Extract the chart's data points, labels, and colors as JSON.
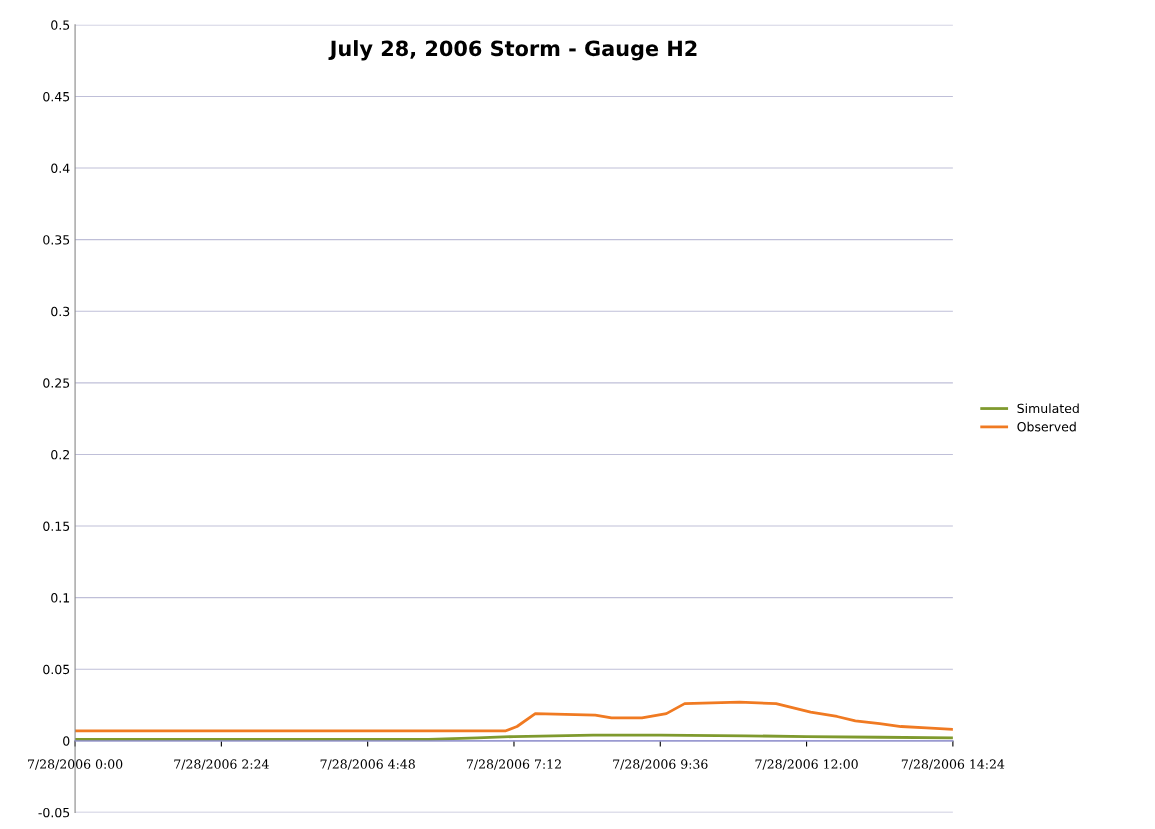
{
  "chart_data": {
    "type": "line",
    "title": "July 28, 2006 Storm - Gauge H2",
    "xlim": [
      "2006-07-28T00:00",
      "2006-07-28T14:24"
    ],
    "xticks": [
      {
        "value": "2006-07-28T00:00",
        "label": "7/28/2006 0:00"
      },
      {
        "value": "2006-07-28T02:24",
        "label": "7/28/2006 2:24"
      },
      {
        "value": "2006-07-28T04:48",
        "label": "7/28/2006 4:48"
      },
      {
        "value": "2006-07-28T07:12",
        "label": "7/28/2006 7:12"
      },
      {
        "value": "2006-07-28T09:36",
        "label": "7/28/2006 9:36"
      },
      {
        "value": "2006-07-28T12:00",
        "label": "7/28/2006 12:00"
      },
      {
        "value": "2006-07-28T14:24",
        "label": "7/28/2006 14:24"
      }
    ],
    "ylim": [
      -0.05,
      0.5
    ],
    "yticks": [
      -0.05,
      0,
      0.05,
      0.1,
      0.15,
      0.2,
      0.25,
      0.3,
      0.35,
      0.4,
      0.45,
      0.5
    ],
    "grid": "y",
    "legend": "right",
    "marker": "none",
    "line_style": "solid",
    "series": [
      {
        "name": "Simulated",
        "color": "#7f9a2e",
        "x": [
          "2006-07-28T00:00",
          "2006-07-28T03:00",
          "2006-07-28T05:48",
          "2006-07-28T06:36",
          "2006-07-28T07:12",
          "2006-07-28T08:30",
          "2006-07-28T09:36",
          "2006-07-28T11:00",
          "2006-07-28T12:00",
          "2006-07-28T13:12",
          "2006-07-28T14:24"
        ],
        "values": [
          0.001,
          0.001,
          0.001,
          0.002,
          0.003,
          0.004,
          0.004,
          0.0035,
          0.003,
          0.0025,
          0.002
        ]
      },
      {
        "name": "Observed",
        "color": "#f07a22",
        "x": [
          "2006-07-28T00:00",
          "2006-07-28T03:00",
          "2006-07-28T06:00",
          "2006-07-28T07:04",
          "2006-07-28T07:15",
          "2006-07-28T07:33",
          "2006-07-28T08:32",
          "2006-07-28T08:48",
          "2006-07-28T09:18",
          "2006-07-28T09:42",
          "2006-07-28T10:00",
          "2006-07-28T10:54",
          "2006-07-28T11:30",
          "2006-07-28T12:04",
          "2006-07-28T12:30",
          "2006-07-28T12:48",
          "2006-07-28T13:12",
          "2006-07-28T13:33",
          "2006-07-28T13:58",
          "2006-07-28T14:24"
        ],
        "values": [
          0.007,
          0.007,
          0.007,
          0.007,
          0.01,
          0.019,
          0.018,
          0.016,
          0.016,
          0.019,
          0.026,
          0.027,
          0.026,
          0.02,
          0.017,
          0.014,
          0.012,
          0.01,
          0.009,
          0.008
        ]
      }
    ]
  }
}
